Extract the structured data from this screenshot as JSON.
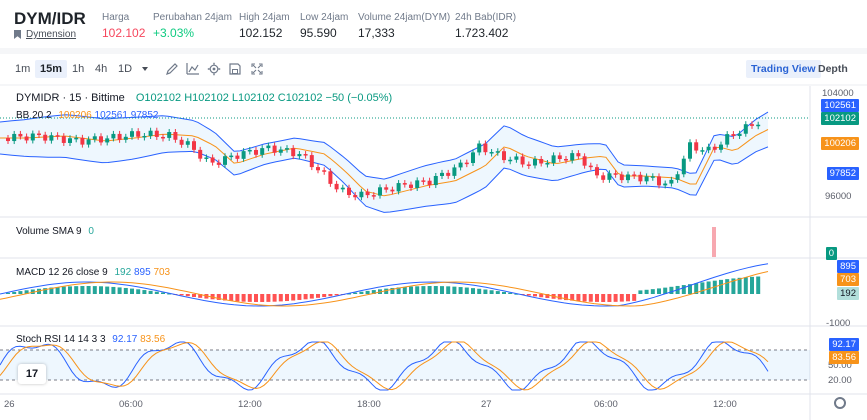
{
  "header": {
    "pair": "DYM/IDR",
    "pair_sub": "Dymension",
    "stats": [
      {
        "label": "Harga",
        "value": "102.102",
        "color": "#f6465d"
      },
      {
        "label": "Perubahan 24jam",
        "value": "+3.03%",
        "color": "#0ecb81"
      },
      {
        "label": "High 24jam",
        "value": "102.152",
        "color": "#1e2329"
      },
      {
        "label": "Low 24jam",
        "value": "95.590",
        "color": "#1e2329"
      },
      {
        "label": "Volume 24jam(DYM)",
        "value": "17,333",
        "color": "#1e2329"
      },
      {
        "label": "24h Bab(IDR)",
        "value": "1.723.402",
        "color": "#1e2329"
      }
    ]
  },
  "toolbar": {
    "timeframes": [
      "1m",
      "15m",
      "1h",
      "4h",
      "1D"
    ],
    "active_timeframe": "15m",
    "views": [
      "Trading View",
      "Depth"
    ],
    "active_view": "Trading View"
  },
  "chart": {
    "title": {
      "symbol": "DYMIDR · 15 · Bittime",
      "o": "O102102",
      "h": "H102102",
      "l": "L102102",
      "c": "C102102",
      "chg": "−50 (−0.05%)"
    },
    "bb": {
      "label": "BB 20 2",
      "basis": "100206",
      "upper": "102561",
      "lower": "97852"
    },
    "volume": {
      "label": "Volume SMA 9",
      "value": "0"
    },
    "macd": {
      "label": "MACD 12 26 close 9",
      "hist": "192",
      "macd": "895",
      "signal": "703"
    },
    "stoch": {
      "label": "Stoch RSI 14 14 3 3",
      "k": "92.17",
      "d": "83.56"
    },
    "price_axis": [
      "104000",
      "96000"
    ],
    "macd_axis": [
      "-1000"
    ],
    "stoch_axis": [
      "50.00",
      "20.00"
    ],
    "price_labels": [
      {
        "value": "102561",
        "color": "#2962ff"
      },
      {
        "value": "102102",
        "color": "#089981"
      },
      {
        "value": "100206",
        "color": "#f7931a"
      },
      {
        "value": "97852",
        "color": "#2962ff"
      }
    ],
    "volume_label": {
      "value": "0",
      "color": "#089981"
    },
    "macd_labels": [
      {
        "value": "895",
        "color": "#2962ff"
      },
      {
        "value": "703",
        "color": "#f7931a"
      },
      {
        "value": "192",
        "color": "#b2dfdb"
      }
    ],
    "stoch_labels": [
      {
        "value": "92.17",
        "color": "#2962ff"
      },
      {
        "value": "83.56",
        "color": "#f7931a"
      }
    ],
    "x_ticks": [
      "26",
      "06:00",
      "12:00",
      "18:00",
      "27",
      "06:00",
      "12:00"
    ],
    "logo": "17"
  }
}
